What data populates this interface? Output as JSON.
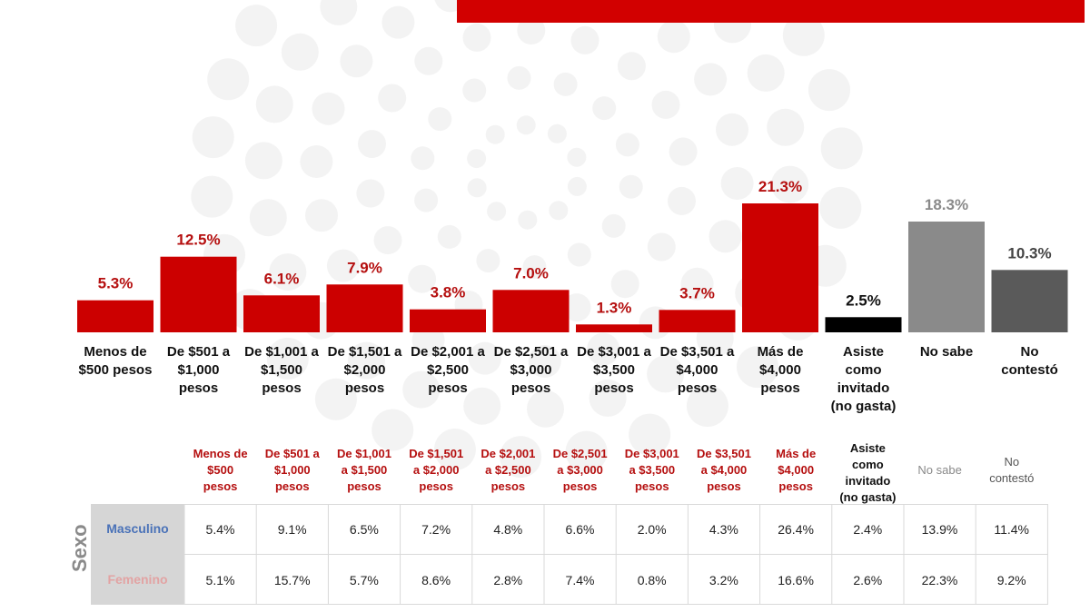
{
  "colors": {
    "bar_red": "#cc0000",
    "label_red": "#b50f0f",
    "invitado_black": "#000000",
    "no_sabe_gray": "#8a8a8a",
    "no_contesto_gray": "#5a5a5a",
    "masculino_blue": "#4a72b8",
    "femenino_pink": "#e2a3a3",
    "top_bar": "#d20000"
  },
  "chart_data": {
    "type": "bar",
    "title": "",
    "xlabel": "",
    "ylabel": "",
    "ylim": [
      0,
      25
    ],
    "categories": [
      "Menos de $500 pesos",
      "De $501 a $1,000 pesos",
      "De $1,001 a $1,500 pesos",
      "De $1,501 a $2,000 pesos",
      "De $2,001 a $2,500 pesos",
      "De $2,501 a $3,000 pesos",
      "De $3,001 a $3,500 pesos",
      "De $3,501 a $4,000 pesos",
      "Más de $4,000 pesos",
      "Asiste como invitado (no gasta)",
      "No sabe",
      "No contestó"
    ],
    "values": [
      5.3,
      12.5,
      6.1,
      7.9,
      3.8,
      7.0,
      1.3,
      3.7,
      21.3,
      2.5,
      18.3,
      10.3
    ],
    "value_labels": [
      "5.3%",
      "12.5%",
      "6.1%",
      "7.9%",
      "3.8%",
      "7.0%",
      "1.3%",
      "3.7%",
      "21.3%",
      "2.5%",
      "18.3%",
      "10.3%"
    ],
    "bar_colors": [
      "#cc0000",
      "#cc0000",
      "#cc0000",
      "#cc0000",
      "#cc0000",
      "#cc0000",
      "#cc0000",
      "#cc0000",
      "#cc0000",
      "#000000",
      "#8a8a8a",
      "#5a5a5a"
    ],
    "label_colors": [
      "#b50f0f",
      "#b50f0f",
      "#b50f0f",
      "#b50f0f",
      "#b50f0f",
      "#b50f0f",
      "#b50f0f",
      "#b50f0f",
      "#b50f0f",
      "#111111",
      "#8a8a8a",
      "#444444"
    ]
  },
  "axis_labels": [
    [
      "Menos de",
      "$500 pesos"
    ],
    [
      "De $501 a",
      "$1,000",
      "pesos"
    ],
    [
      "De $1,001 a",
      "$1,500",
      "pesos"
    ],
    [
      "De $1,501 a",
      "$2,000",
      "pesos"
    ],
    [
      "De $2,001 a",
      "$2,500",
      "pesos"
    ],
    [
      "De $2,501 a",
      "$3,000",
      "pesos"
    ],
    [
      "De $3,001 a",
      "$3,500",
      "pesos"
    ],
    [
      "De $3,501 a",
      "$4,000",
      "pesos"
    ],
    [
      "Más de",
      "$4,000",
      "pesos"
    ],
    [
      "Asiste",
      "como",
      "invitado",
      "(no gasta)"
    ],
    [
      "No sabe"
    ],
    [
      "No",
      "contestó"
    ]
  ],
  "table": {
    "sexo_label": "Sexo",
    "headers": [
      [
        "Menos de",
        "$500",
        "pesos"
      ],
      [
        "De $501 a",
        "$1,000",
        "pesos"
      ],
      [
        "De $1,001",
        "a $1,500",
        "pesos"
      ],
      [
        "De $1,501",
        "a $2,000",
        "pesos"
      ],
      [
        "De $2,001",
        "a $2,500",
        "pesos"
      ],
      [
        "De $2,501",
        "a $3,000",
        "pesos"
      ],
      [
        "De $3,001",
        "a $3,500",
        "pesos"
      ],
      [
        "De $3,501",
        "a $4,000",
        "pesos"
      ],
      [
        "Más de",
        "$4,000",
        "pesos"
      ],
      [
        "Asiste",
        "como",
        "invitado",
        "(no gasta)"
      ],
      [
        "No sabe"
      ],
      [
        "No",
        "contestó"
      ]
    ],
    "header_colors": [
      "#b50f0f",
      "#b50f0f",
      "#b50f0f",
      "#b50f0f",
      "#b50f0f",
      "#b50f0f",
      "#b50f0f",
      "#b50f0f",
      "#b50f0f",
      "#111111",
      "#8a8a8a",
      "#555555"
    ],
    "rows": [
      {
        "label": "Masculino",
        "values": [
          "5.4%",
          "9.1%",
          "6.5%",
          "7.2%",
          "4.8%",
          "6.6%",
          "2.0%",
          "4.3%",
          "26.4%",
          "2.4%",
          "13.9%",
          "11.4%"
        ]
      },
      {
        "label": "Femenino",
        "values": [
          "5.1%",
          "15.7%",
          "5.7%",
          "8.6%",
          "2.8%",
          "7.4%",
          "0.8%",
          "3.2%",
          "16.6%",
          "2.6%",
          "22.3%",
          "9.2%"
        ]
      }
    ]
  }
}
